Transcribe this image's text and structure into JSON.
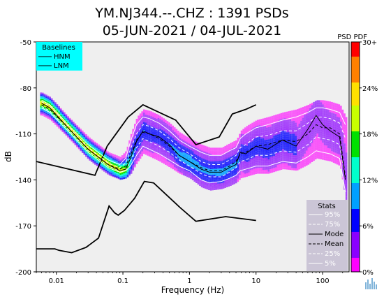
{
  "chart_data": {
    "type": "line",
    "title_line1": "YM.NJ344.--.CHZ : 1391 PSDs",
    "title_line2": "05-JUN-2021 / 04-JUL-2021",
    "xlabel": "Frequency (Hz)",
    "ylabel": "dB",
    "x_scale": "log",
    "xlim": [
      0.005,
      250
    ],
    "ylim": [
      -200,
      -50
    ],
    "x_ticks": [
      {
        "value": 0.01,
        "label": "0.01"
      },
      {
        "value": 0.1,
        "label": "0.1"
      },
      {
        "value": 1,
        "label": "1"
      },
      {
        "value": 10,
        "label": "10"
      },
      {
        "value": 100,
        "label": "100"
      }
    ],
    "y_ticks": [
      {
        "value": -50,
        "label": "-50"
      },
      {
        "value": -80,
        "label": "-80"
      },
      {
        "value": -110,
        "label": "-110"
      },
      {
        "value": -140,
        "label": "-140"
      },
      {
        "value": -170,
        "label": "-170"
      },
      {
        "value": -200,
        "label": "-200"
      }
    ],
    "background_color": "#efefef",
    "grid": false,
    "colorbar": {
      "title": "PSD PDF",
      "colors": [
        "#ff00ff",
        "#8a00ff",
        "#0000ff",
        "#00a0ff",
        "#00ffcc",
        "#00e000",
        "#c8ff00",
        "#ffe000",
        "#ff8000",
        "#ff0000"
      ],
      "ticks": [
        {
          "value": 0,
          "label": "0%"
        },
        {
          "value": 6,
          "label": "6%"
        },
        {
          "value": 12,
          "label": "12%"
        },
        {
          "value": 18,
          "label": "18%"
        },
        {
          "value": 24,
          "label": "24%"
        },
        {
          "value": 30,
          "label": "30+"
        }
      ],
      "range": [
        0,
        30
      ]
    },
    "baselines_legend": {
      "title": "Baselines",
      "entries": [
        "HNM",
        "LNM"
      ],
      "background": "#00ffff",
      "placement": "top-left"
    },
    "stats_legend": {
      "title": "Stats",
      "entries": [
        {
          "label": "95%",
          "style": "solid",
          "color": "#ffffff"
        },
        {
          "label": "75%",
          "style": "dashed",
          "color": "#ffffff"
        },
        {
          "label": "Mode",
          "style": "solid",
          "color": "#000000"
        },
        {
          "label": "Mean",
          "style": "dashed",
          "color": "#000000"
        },
        {
          "label": "25%",
          "style": "dashed",
          "color": "#ffffff"
        },
        {
          "label": "5%",
          "style": "solid",
          "color": "#ffffff"
        }
      ],
      "background": "#cbc5d6",
      "placement": "bottom-right"
    },
    "series": [
      {
        "name": "HNM",
        "color": "#000000",
        "style": "solid",
        "x": [
          0.005,
          0.038,
          0.058,
          0.065,
          0.12,
          0.2,
          0.62,
          1.25,
          2.8,
          4.4,
          7.0,
          10.0
        ],
        "y": [
          -128,
          -137,
          -118,
          -115,
          -99,
          -91,
          -101,
          -117,
          -112,
          -97,
          -94,
          -91
        ]
      },
      {
        "name": "LNM",
        "color": "#000000",
        "style": "solid",
        "x": [
          0.005,
          0.0095,
          0.011,
          0.017,
          0.028,
          0.043,
          0.062,
          0.075,
          0.085,
          0.105,
          0.15,
          0.21,
          0.29,
          0.72,
          1.25,
          3.5,
          10.0
        ],
        "y": [
          -185,
          -185,
          -186,
          -187.5,
          -184,
          -178,
          -157,
          -161.5,
          -163,
          -160,
          -152,
          -141,
          -142,
          -158,
          -167,
          -164,
          -166.5
        ]
      },
      {
        "name": "Mode",
        "color": "#000000",
        "style": "solid",
        "x": [
          0.006,
          0.008,
          0.015,
          0.03,
          0.06,
          0.09,
          0.11,
          0.13,
          0.16,
          0.2,
          0.25,
          0.35,
          0.5,
          0.7,
          1.0,
          1.5,
          2.0,
          3.0,
          4.0,
          5.0,
          5.8,
          7.0,
          10.0,
          15.0,
          25.0,
          40.0,
          60.0,
          80.0,
          100.0,
          130.0,
          180.0,
          220.0
        ],
        "y": [
          -90,
          -93,
          -106,
          -120,
          -130,
          -134,
          -133,
          -126,
          -115,
          -108,
          -110,
          -112,
          -117,
          -124,
          -128,
          -133,
          -135,
          -135,
          -132,
          -130,
          -122,
          -123,
          -118,
          -120,
          -114,
          -118,
          -107,
          -98,
          -104,
          -108,
          -112,
          -140
        ]
      },
      {
        "name": "Mean",
        "color": "#000000",
        "style": "dashed",
        "x": [
          0.006,
          0.008,
          0.015,
          0.03,
          0.06,
          0.09,
          0.11,
          0.13,
          0.16,
          0.2,
          0.25,
          0.35,
          0.5,
          0.7,
          1.0,
          1.5,
          2.0,
          3.0,
          4.0,
          5.0,
          5.8,
          7.0,
          10.0,
          15.0,
          25.0,
          40.0,
          60.0,
          80.0,
          100.0,
          130.0,
          180.0,
          220.0
        ],
        "y": [
          -91,
          -94,
          -106,
          -120,
          -130,
          -133,
          -131,
          -124,
          -114,
          -109,
          -110,
          -113,
          -118,
          -124,
          -128,
          -132,
          -134,
          -134,
          -131,
          -128,
          -123,
          -122,
          -118,
          -117,
          -114,
          -115,
          -110,
          -104,
          -106,
          -106,
          -110,
          -138
        ]
      },
      {
        "name": "95%",
        "color": "#ffffff",
        "style": "solid",
        "x": [
          0.006,
          0.008,
          0.015,
          0.03,
          0.06,
          0.09,
          0.11,
          0.13,
          0.16,
          0.2,
          0.25,
          0.35,
          0.5,
          0.7,
          1.0,
          1.5,
          2.0,
          3.0,
          4.0,
          5.0,
          5.8,
          7.0,
          10.0,
          15.0,
          25.0,
          40.0,
          60.0,
          80.0,
          100.0,
          130.0,
          180.0,
          220.0
        ],
        "y": [
          -88,
          -91,
          -104,
          -117,
          -127,
          -130,
          -126,
          -115,
          -104,
          -99,
          -100,
          -103,
          -108,
          -114,
          -118,
          -122,
          -124,
          -124,
          -121,
          -119,
          -113,
          -110,
          -106,
          -104,
          -101,
          -99,
          -96,
          -93,
          -93,
          -94,
          -96,
          -104
        ]
      },
      {
        "name": "75%",
        "color": "#ffffff",
        "style": "dashed",
        "x": [
          0.006,
          0.008,
          0.015,
          0.03,
          0.06,
          0.09,
          0.11,
          0.13,
          0.16,
          0.2,
          0.25,
          0.35,
          0.5,
          0.7,
          1.0,
          1.5,
          2.0,
          3.0,
          4.0,
          5.0,
          5.8,
          7.0,
          10.0,
          15.0,
          25.0,
          40.0,
          60.0,
          80.0,
          100.0,
          130.0,
          180.0,
          220.0
        ],
        "y": [
          -89,
          -92,
          -105,
          -119,
          -129,
          -132,
          -129,
          -120,
          -110,
          -104,
          -105,
          -108,
          -113,
          -119,
          -123,
          -128,
          -130,
          -130,
          -127,
          -124,
          -119,
          -117,
          -112,
          -111,
          -108,
          -108,
          -103,
          -99,
          -99,
          -100,
          -103,
          -113
        ]
      },
      {
        "name": "25%",
        "color": "#ffffff",
        "style": "dashed",
        "x": [
          0.006,
          0.008,
          0.015,
          0.03,
          0.06,
          0.09,
          0.11,
          0.13,
          0.16,
          0.2,
          0.25,
          0.35,
          0.5,
          0.7,
          1.0,
          1.5,
          2.0,
          3.0,
          4.0,
          5.0,
          5.8,
          7.0,
          10.0,
          15.0,
          25.0,
          40.0,
          60.0,
          80.0,
          100.0,
          130.0,
          180.0,
          220.0
        ],
        "y": [
          -92,
          -95,
          -107,
          -121,
          -131,
          -134,
          -133,
          -128,
          -119,
          -113,
          -115,
          -118,
          -122,
          -127,
          -131,
          -136,
          -138,
          -138,
          -135,
          -132,
          -128,
          -127,
          -124,
          -124,
          -121,
          -122,
          -117,
          -112,
          -113,
          -114,
          -117,
          -140
        ]
      },
      {
        "name": "5%",
        "color": "#ffffff",
        "style": "solid",
        "x": [
          0.006,
          0.008,
          0.015,
          0.03,
          0.06,
          0.09,
          0.11,
          0.13,
          0.16,
          0.2,
          0.25,
          0.35,
          0.5,
          0.7,
          1.0,
          1.5,
          2.0,
          3.0,
          4.0,
          5.0,
          5.8,
          7.0,
          10.0,
          15.0,
          25.0,
          40.0,
          60.0,
          80.0,
          100.0,
          130.0,
          180.0,
          220.0
        ],
        "y": [
          -93,
          -96,
          -108,
          -122,
          -132,
          -135,
          -134,
          -131,
          -124,
          -118,
          -120,
          -123,
          -127,
          -131,
          -134,
          -140,
          -142,
          -141,
          -139,
          -137,
          -134,
          -133,
          -131,
          -131,
          -128,
          -129,
          -125,
          -121,
          -122,
          -123,
          -126,
          -148
        ]
      }
    ]
  }
}
